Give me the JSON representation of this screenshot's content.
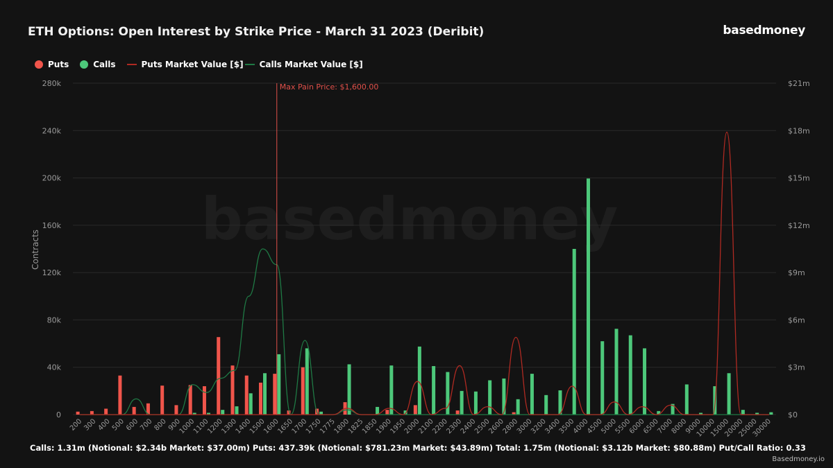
{
  "header": {
    "title": "ETH Options: Open Interest by Strike Price - March 31 2023 (Deribit)",
    "brand": "basedmoney"
  },
  "legend": {
    "puts": "Puts",
    "calls": "Calls",
    "puts_mv": "Puts Market Value [$]",
    "calls_mv": "Calls Market Value [$]"
  },
  "colors": {
    "puts": "#f0554b",
    "calls": "#4dc87a",
    "puts_line": "#b02a22",
    "calls_line": "#1f7a45",
    "maxpain": "#e0504a",
    "grid": "#2a2a2a",
    "axis_text": "#9a9a9a"
  },
  "summary": "Calls: 1.31m (Notional: $2.34b Market: $37.00m) Puts: 437.39k (Notional: $781.23m Market: $43.89m) Total: 1.75m (Notional: $3.12b Market: $80.88m) Put/Call Ratio: 0.33",
  "footer": "Basedmoney.io",
  "chart_data": {
    "type": "bar",
    "watermark": "basedmoney",
    "categories": [
      "200",
      "300",
      "400",
      "500",
      "600",
      "700",
      "800",
      "900",
      "1000",
      "1100",
      "1200",
      "1300",
      "1400",
      "1500",
      "1600",
      "1650",
      "1700",
      "1750",
      "1775",
      "1800",
      "1825",
      "1850",
      "1900",
      "1950",
      "2000",
      "2100",
      "2200",
      "2300",
      "2400",
      "2500",
      "2600",
      "2800",
      "3000",
      "3200",
      "3400",
      "3500",
      "4000",
      "4500",
      "5000",
      "5500",
      "6000",
      "6500",
      "7000",
      "8000",
      "9000",
      "10000",
      "15000",
      "20000",
      "25000",
      "30000"
    ],
    "ylabel": "Contracts",
    "ylim": [
      0,
      280000
    ],
    "y_ticks": [
      "0",
      "40k",
      "80k",
      "120k",
      "160k",
      "200k",
      "240k",
      "280k"
    ],
    "y2lim": [
      0,
      21000000
    ],
    "y2_ticks": [
      "$0",
      "$3m",
      "$6m",
      "$9m",
      "$12m",
      "$15m",
      "$18m",
      "$21m"
    ],
    "grid": true,
    "legend_position": "top-left",
    "annotation": {
      "label": "Max Pain Price: $1,600.00",
      "category": "1600"
    },
    "series": [
      {
        "name": "Puts",
        "type": "bar",
        "values": [
          2500,
          3000,
          5000,
          33000,
          6500,
          9500,
          24500,
          8000,
          25000,
          24000,
          65500,
          41500,
          33000,
          27000,
          34500,
          3500,
          40000,
          5000,
          0,
          10500,
          0,
          0,
          4000,
          0,
          8000,
          0,
          0,
          3500,
          0,
          0,
          0,
          2000,
          0,
          0,
          0,
          0,
          0,
          0,
          0,
          0,
          0,
          0,
          0,
          0,
          0,
          0,
          0,
          0,
          0,
          0
        ]
      },
      {
        "name": "Calls",
        "type": "bar",
        "values": [
          0,
          0,
          0,
          0,
          0,
          0,
          0,
          0,
          1500,
          1500,
          4000,
          7000,
          18000,
          35000,
          51000,
          0,
          56000,
          2500,
          0,
          42500,
          0,
          6500,
          41500,
          3500,
          57500,
          41000,
          36000,
          20000,
          19500,
          29000,
          30500,
          13000,
          34500,
          16500,
          20500,
          140000,
          199500,
          62000,
          72500,
          67000,
          56000,
          3000,
          9000,
          25500,
          1500,
          24000,
          35000,
          4000,
          1500,
          2000
        ]
      },
      {
        "name": "Puts Market Value [$]",
        "type": "line",
        "values": [
          0,
          0,
          0,
          0,
          0,
          0,
          0,
          0,
          0,
          0,
          0,
          0,
          0,
          0,
          0,
          0,
          0,
          0,
          0,
          400000,
          0,
          0,
          400000,
          0,
          2100000,
          0,
          400000,
          3100000,
          0,
          500000,
          0,
          4900000,
          0,
          0,
          0,
          1800000,
          0,
          0,
          800000,
          0,
          500000,
          0,
          600000,
          0,
          0,
          0,
          17900000,
          0,
          0,
          0
        ]
      },
      {
        "name": "Calls Market Value [$]",
        "type": "line",
        "values": [
          0,
          0,
          0,
          0,
          1000000,
          0,
          0,
          0,
          1900000,
          1400000,
          2300000,
          2800000,
          7500000,
          10500000,
          9500000,
          0,
          4700000,
          0,
          0,
          300000,
          0,
          0,
          0,
          0,
          0,
          0,
          0,
          0,
          0,
          0,
          0,
          0,
          0,
          0,
          0,
          0,
          0,
          0,
          0,
          0,
          0,
          0,
          0,
          0,
          0,
          0,
          0,
          0,
          0,
          0
        ]
      }
    ]
  }
}
